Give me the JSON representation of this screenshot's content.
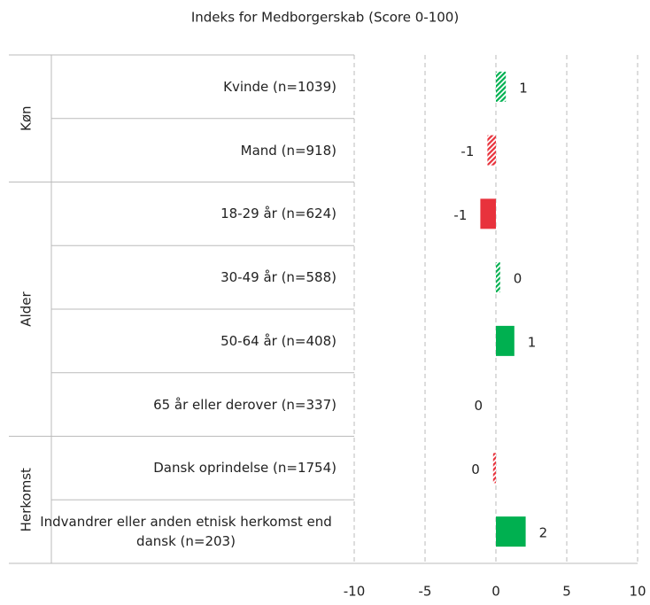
{
  "chart_data": {
    "type": "bar",
    "orientation": "horizontal",
    "title": "Indeks for Medborgerskab (Score 0-100)",
    "groups": [
      {
        "name": "Køn",
        "size": 2
      },
      {
        "name": "Alder",
        "size": 4
      },
      {
        "name": "Herkomst",
        "size": 2
      }
    ],
    "categories": [
      "Kvinde (n=1039)",
      "Mand (n=918)",
      "18-29 år (n=624)",
      "30-49 år (n=588)",
      "50-64 år (n=408)",
      "65 år eller derover (n=337)",
      "Dansk oprindelse (n=1754)",
      "Indvandrer eller anden etnisk herkomst end dansk (n=203)"
    ],
    "values": [
      0.7,
      -0.6,
      -1.1,
      0.3,
      1.3,
      0,
      -0.2,
      2.1
    ],
    "value_labels": [
      "1",
      "-1",
      "-1",
      "0",
      "1",
      "0",
      "0",
      "2"
    ],
    "colors": [
      "#00b050",
      "#e8323c",
      "#e8323c",
      "#00b050",
      "#00b050",
      "#00b050",
      "#e8323c",
      "#00b050"
    ],
    "hatched": [
      true,
      true,
      false,
      true,
      false,
      false,
      true,
      false
    ],
    "xlim": [
      -10,
      10
    ],
    "xticks": [
      -10,
      -5,
      0,
      5,
      10
    ],
    "grid": true
  }
}
